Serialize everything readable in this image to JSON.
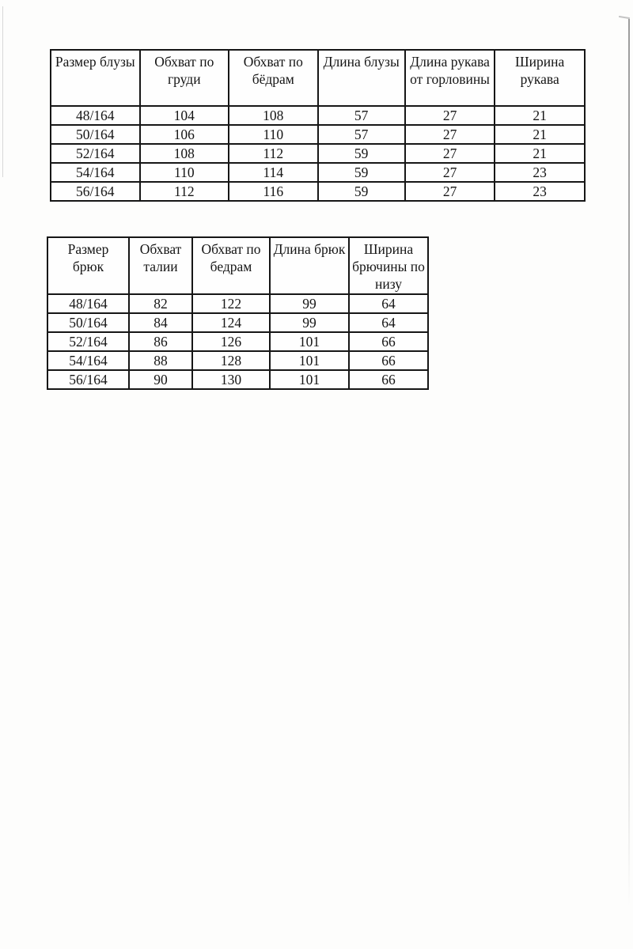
{
  "blouse_table": {
    "headers": [
      "Размер блузы",
      "Обхват по груди",
      "Обхват по бёдрам",
      "Длина блузы",
      "Длина рукава от горловины",
      "Ширина рукава"
    ],
    "rows": [
      [
        "48/164",
        "104",
        "108",
        "57",
        "27",
        "21"
      ],
      [
        "50/164",
        "106",
        "110",
        "57",
        "27",
        "21"
      ],
      [
        "52/164",
        "108",
        "112",
        "59",
        "27",
        "21"
      ],
      [
        "54/164",
        "110",
        "114",
        "59",
        "27",
        "23"
      ],
      [
        "56/164",
        "112",
        "116",
        "59",
        "27",
        "23"
      ]
    ]
  },
  "trouser_table": {
    "headers": [
      "Размер брюк",
      "Обхват талии",
      "Обхват по бедрам",
      "Длина брюк",
      "Ширина брючины по низу"
    ],
    "rows": [
      [
        "48/164",
        "82",
        "122",
        "99",
        "64"
      ],
      [
        "50/164",
        "84",
        "124",
        "99",
        "64"
      ],
      [
        "52/164",
        "86",
        "126",
        "101",
        "66"
      ],
      [
        "54/164",
        "88",
        "128",
        "101",
        "66"
      ],
      [
        "56/164",
        "90",
        "130",
        "101",
        "66"
      ]
    ]
  },
  "colors": {
    "table_border": "#161616",
    "text": "#151515",
    "page_background": "#fdfdfc"
  }
}
